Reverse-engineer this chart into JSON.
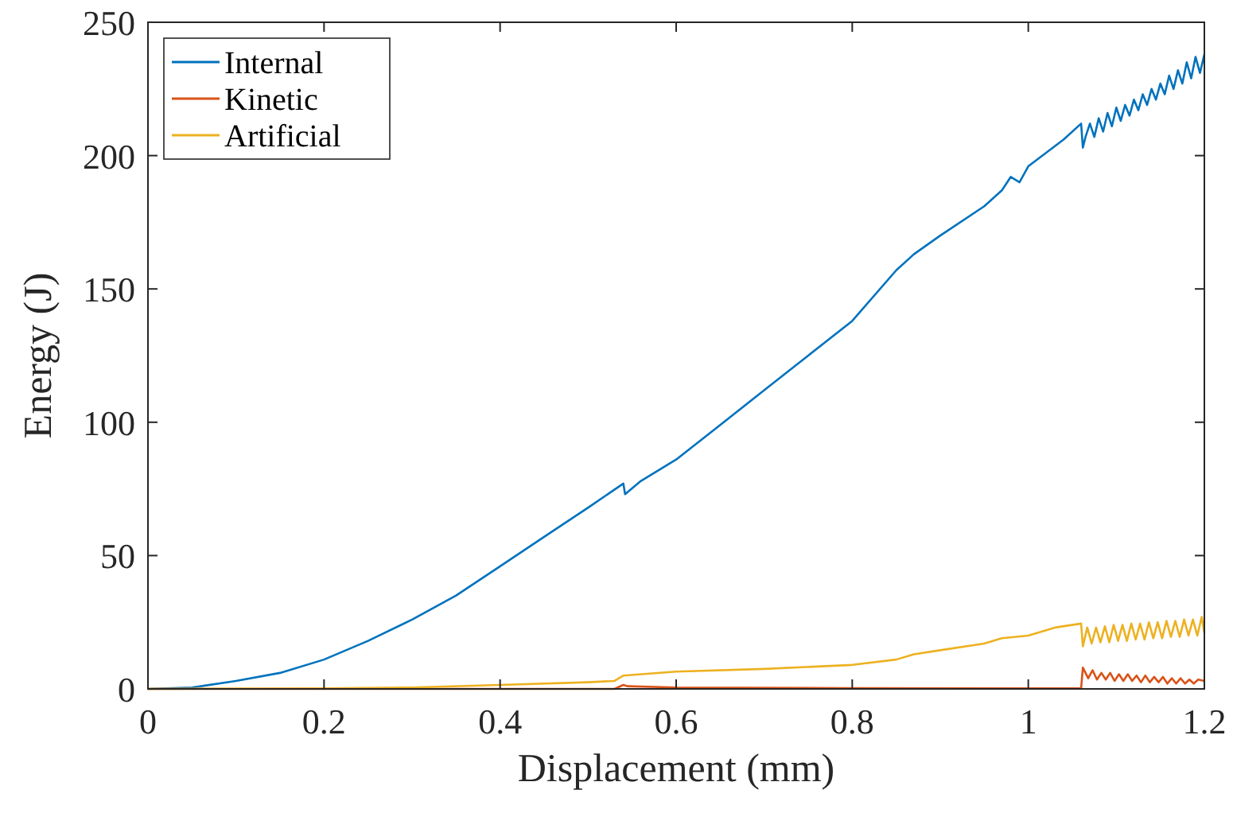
{
  "chart_data": {
    "type": "line",
    "xlabel": "Displacement (mm)",
    "ylabel": "Energy (J)",
    "xlim": [
      0,
      1.2
    ],
    "ylim": [
      0,
      250
    ],
    "xticks": [
      0,
      0.2,
      0.4,
      0.6,
      0.8,
      1,
      1.2
    ],
    "yticks": [
      0,
      50,
      100,
      150,
      200,
      250
    ],
    "grid": false,
    "legend": "top left",
    "line_style": "solid",
    "series": [
      {
        "name": "Internal",
        "color": "#0072bd",
        "x": [
          0,
          0.05,
          0.1,
          0.15,
          0.2,
          0.25,
          0.3,
          0.35,
          0.4,
          0.45,
          0.5,
          0.54,
          0.542,
          0.56,
          0.6,
          0.65,
          0.7,
          0.75,
          0.8,
          0.85,
          0.87,
          0.9,
          0.95,
          0.97,
          0.98,
          0.99,
          1.0,
          1.02,
          1.04,
          1.06,
          1.062,
          1.065,
          1.07,
          1.075,
          1.08,
          1.085,
          1.09,
          1.095,
          1.1,
          1.105,
          1.11,
          1.115,
          1.12,
          1.125,
          1.13,
          1.135,
          1.14,
          1.145,
          1.15,
          1.155,
          1.16,
          1.165,
          1.17,
          1.175,
          1.18,
          1.185,
          1.19,
          1.195,
          1.2
        ],
        "values": [
          0,
          0.5,
          3,
          6,
          11,
          18,
          26,
          35,
          46,
          57,
          68,
          77,
          73,
          78,
          86,
          99,
          112,
          125,
          138,
          157,
          163,
          170,
          181,
          187,
          192,
          190,
          196,
          201,
          206,
          212,
          203,
          207,
          212,
          207,
          214,
          209,
          216,
          211,
          218,
          213,
          219,
          215,
          221,
          217,
          223,
          219,
          225,
          221,
          227,
          223,
          230,
          225,
          232,
          227,
          235,
          229,
          237,
          231,
          238
        ]
      },
      {
        "name": "Kinetic",
        "color": "#d95319",
        "x": [
          0,
          0.3,
          0.53,
          0.54,
          0.545,
          0.6,
          0.8,
          1.0,
          1.06,
          1.062,
          1.068,
          1.073,
          1.078,
          1.083,
          1.088,
          1.093,
          1.098,
          1.103,
          1.108,
          1.113,
          1.118,
          1.123,
          1.128,
          1.133,
          1.138,
          1.143,
          1.148,
          1.153,
          1.158,
          1.163,
          1.168,
          1.173,
          1.178,
          1.183,
          1.188,
          1.193,
          1.2
        ],
        "values": [
          0,
          0,
          0,
          1.5,
          1,
          0.5,
          0.3,
          0.2,
          0.2,
          8,
          4,
          7,
          3.5,
          6,
          3.5,
          6,
          3,
          5.5,
          3,
          5.5,
          3,
          5,
          2.5,
          5,
          2.5,
          4.5,
          2.5,
          4.5,
          2,
          4,
          2,
          4,
          2,
          3.5,
          2,
          3.5,
          3
        ]
      },
      {
        "name": "Artificial",
        "color": "#edb120",
        "x": [
          0,
          0.2,
          0.3,
          0.4,
          0.5,
          0.53,
          0.54,
          0.6,
          0.7,
          0.8,
          0.85,
          0.87,
          0.9,
          0.95,
          0.97,
          1.0,
          1.03,
          1.06,
          1.062,
          1.067,
          1.072,
          1.077,
          1.082,
          1.087,
          1.092,
          1.097,
          1.102,
          1.107,
          1.112,
          1.117,
          1.122,
          1.127,
          1.132,
          1.137,
          1.142,
          1.147,
          1.152,
          1.157,
          1.162,
          1.167,
          1.172,
          1.177,
          1.182,
          1.187,
          1.192,
          1.197,
          1.2
        ],
        "values": [
          0,
          0.2,
          0.5,
          1.5,
          2.5,
          3,
          5,
          6.5,
          7.5,
          9,
          11,
          13,
          14.5,
          17,
          19,
          20,
          23,
          24.5,
          16,
          23,
          17,
          23,
          17.5,
          23.5,
          17.5,
          24,
          18,
          24,
          18,
          24.5,
          18.5,
          24.5,
          18.5,
          25,
          19,
          25,
          19,
          25.5,
          19.5,
          25.5,
          19.5,
          26,
          20,
          26,
          20,
          27,
          21
        ]
      }
    ]
  }
}
